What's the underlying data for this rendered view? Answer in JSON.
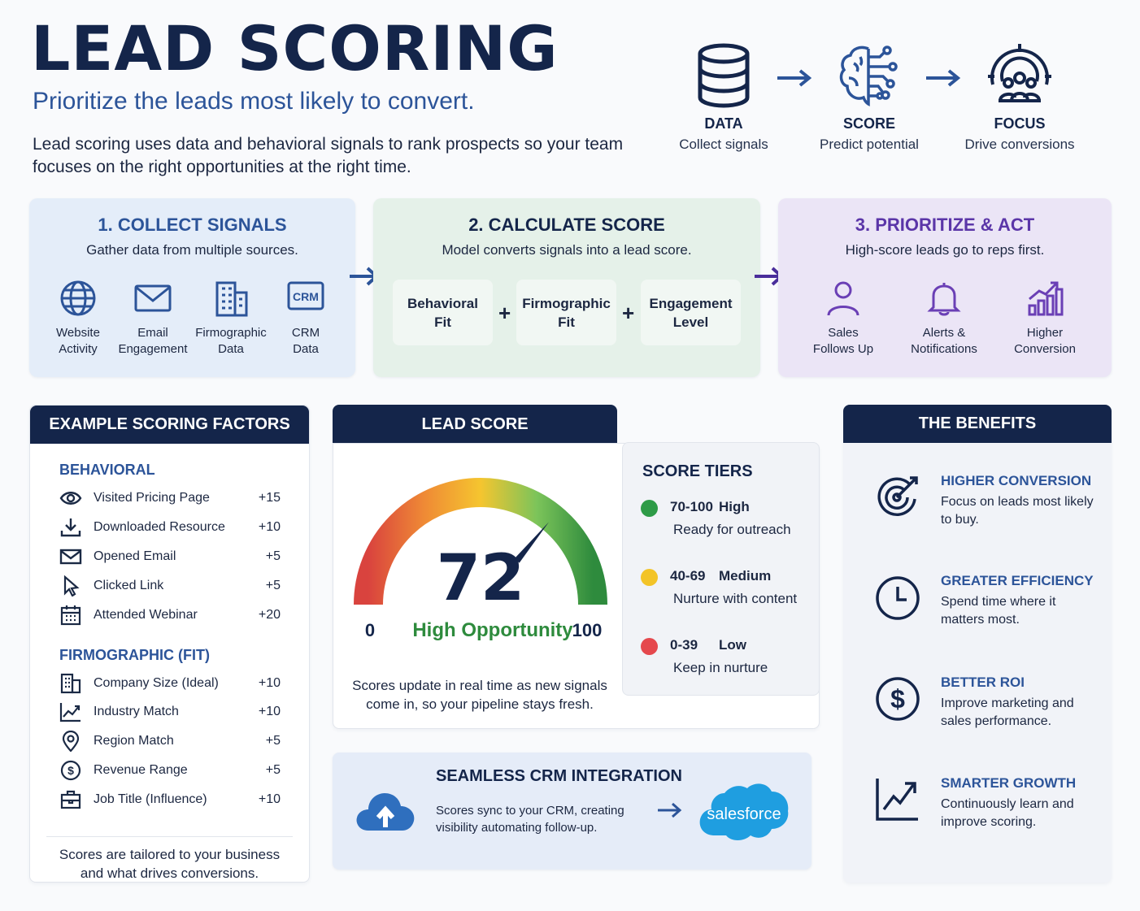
{
  "header": {
    "title": "LEAD SCORING",
    "subtitle": "Prioritize the leads most likely to convert.",
    "intro": "Lead scoring uses data and behavioral signals to rank prospects so your team focuses on the right opportunities at the right time."
  },
  "flow": [
    {
      "icon": "database-icon",
      "title": "DATA",
      "desc": "Collect signals"
    },
    {
      "icon": "brain-circuit-icon",
      "title": "SCORE",
      "desc": "Predict potential"
    },
    {
      "icon": "target-people-icon",
      "title": "FOCUS",
      "desc": "Drive conversions"
    }
  ],
  "steps": {
    "collect": {
      "title": "1. COLLECT SIGNALS",
      "desc": "Gather data from multiple sources.",
      "items": [
        {
          "icon": "globe-icon",
          "label1": "Website",
          "label2": "Activity"
        },
        {
          "icon": "envelope-icon",
          "label1": "Email",
          "label2": "Engagement"
        },
        {
          "icon": "building-icon",
          "label1": "Firmographic",
          "label2": "Data"
        },
        {
          "icon": "crm-icon",
          "icon_text": "CRM",
          "label1": "CRM",
          "label2": "Data"
        }
      ]
    },
    "calculate": {
      "title": "2. CALCULATE SCORE",
      "desc": "Model converts signals into a lead score.",
      "boxes": [
        {
          "line1": "Behavioral",
          "line2": "Fit"
        },
        {
          "line1": "Firmographic",
          "line2": "Fit"
        },
        {
          "line1": "Engagement",
          "line2": "Level"
        }
      ],
      "plus": "+"
    },
    "prioritize": {
      "title": "3. PRIORITIZE & ACT",
      "desc": "High-score leads go to reps first.",
      "items": [
        {
          "icon": "person-icon",
          "label1": "Sales",
          "label2": "Follows Up"
        },
        {
          "icon": "bell-icon",
          "label1": "Alerts &",
          "label2": "Notifications"
        },
        {
          "icon": "growth-chart-icon",
          "label1": "Higher",
          "label2": "Conversion"
        }
      ]
    }
  },
  "factors": {
    "header": "EXAMPLE SCORING FACTORS",
    "behavioral_title": "BEHAVIORAL",
    "behavioral": [
      {
        "icon": "eye-icon",
        "label": "Visited Pricing Page",
        "points": "+15"
      },
      {
        "icon": "download-icon",
        "label": "Downloaded Resource",
        "points": "+10"
      },
      {
        "icon": "mail-icon",
        "label": "Opened Email",
        "points": "+5"
      },
      {
        "icon": "cursor-icon",
        "label": "Clicked Link",
        "points": "+5"
      },
      {
        "icon": "calendar-icon",
        "label": "Attended Webinar",
        "points": "+20"
      }
    ],
    "firmographic_title": "FIRMOGRAPHIC (FIT)",
    "firmographic": [
      {
        "icon": "building-icon",
        "label": "Company Size (Ideal)",
        "points": "+10"
      },
      {
        "icon": "trend-icon",
        "label": "Industry Match",
        "points": "+10"
      },
      {
        "icon": "pin-icon",
        "label": "Region Match",
        "points": "+5"
      },
      {
        "icon": "dollar-icon",
        "label": "Revenue Range",
        "points": "+5"
      },
      {
        "icon": "briefcase-icon",
        "label": "Job Title (Influence)",
        "points": "+10"
      }
    ],
    "note": "Scores are tailored to your business and what drives conversions."
  },
  "lead_score": {
    "header": "LEAD SCORE",
    "value": "72",
    "score_fraction": 0.72,
    "min": "0",
    "max": "100",
    "label": "High Opportunity",
    "note": "Scores update in real time as new signals come in, so your pipeline stays fresh."
  },
  "tiers": {
    "title": "SCORE TIERS",
    "items": [
      {
        "range": "70-100",
        "level": "High",
        "desc": "Ready for outreach",
        "color": "#2e9b47"
      },
      {
        "range": "40-69",
        "level": "Medium",
        "desc": "Nurture with content",
        "color": "#f3c428"
      },
      {
        "range": "0-39",
        "level": "Low",
        "desc": "Keep in nurture",
        "color": "#e5484d"
      }
    ]
  },
  "crm": {
    "title": "SEAMLESS CRM INTEGRATION",
    "desc": "Scores sync to your CRM, creating visibility automating follow-up.",
    "logo": "salesforce",
    "icon": "cloud-upload-icon"
  },
  "benefits": {
    "header": "THE BENEFITS",
    "items": [
      {
        "icon": "target-icon",
        "title": "HIGHER CONVERSION",
        "desc": "Focus on leads most likely to buy."
      },
      {
        "icon": "clock-icon",
        "title": "GREATER EFFICIENCY",
        "desc": "Spend time where it matters most."
      },
      {
        "icon": "dollar-circle-icon",
        "title": "BETTER ROI",
        "desc": "Improve marketing and sales performance."
      },
      {
        "icon": "growth-icon",
        "title": "SMARTER GROWTH",
        "desc": "Continuously learn and improve scoring."
      }
    ]
  },
  "colors": {
    "navy": "#14254a",
    "blue_accent": "#2c5499",
    "green_accent": "#2e8b3d",
    "purple_accent": "#6a3fb5"
  }
}
